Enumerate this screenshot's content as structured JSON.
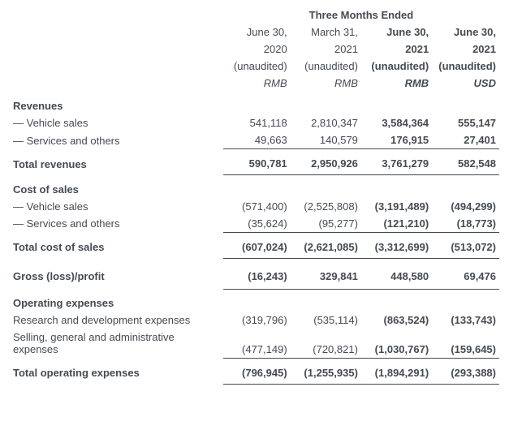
{
  "period_header": "Three Months Ended",
  "columns": [
    {
      "line1": "June 30,",
      "line2": "2020",
      "audit": "(unaudited)",
      "ccy": "RMB",
      "bold": false
    },
    {
      "line1": "March 31,",
      "line2": "2021",
      "audit": "(unaudited)",
      "ccy": "RMB",
      "bold": false
    },
    {
      "line1": "June 30,",
      "line2": "2021",
      "audit": "(unaudited)",
      "ccy": "RMB",
      "bold": true
    },
    {
      "line1": "June 30,",
      "line2": "2021",
      "audit": "(unaudited)",
      "ccy": "USD",
      "bold": true
    }
  ],
  "sections": [
    {
      "title": "Revenues",
      "rows": [
        {
          "label": "— Vehicle sales",
          "vals": [
            "541,118",
            "2,810,347",
            "3,584,364",
            "555,147"
          ],
          "underline": false
        },
        {
          "label": "— Services and others",
          "vals": [
            "49,663",
            "140,579",
            "176,915",
            "27,401"
          ],
          "underline": true
        }
      ],
      "total": {
        "label": "Total revenues",
        "vals": [
          "590,781",
          "2,950,926",
          "3,761,279",
          "582,548"
        ]
      }
    },
    {
      "title": "Cost of sales",
      "rows": [
        {
          "label": "— Vehicle sales",
          "vals": [
            "(571,400)",
            "(2,525,808)",
            "(3,191,489)",
            "(494,299)"
          ],
          "underline": false
        },
        {
          "label": "— Services and others",
          "vals": [
            "(35,624)",
            "(95,277)",
            "(121,210)",
            "(18,773)"
          ],
          "underline": true
        }
      ],
      "total": {
        "label": "Total cost of sales",
        "vals": [
          "(607,024)",
          "(2,621,085)",
          "(3,312,699)",
          "(513,072)"
        ]
      }
    }
  ],
  "gross": {
    "label": "Gross (loss)/profit",
    "vals": [
      "(16,243)",
      "329,841",
      "448,580",
      "69,476"
    ]
  },
  "opex": {
    "title": "Operating expenses",
    "rows": [
      {
        "label": "Research and development expenses",
        "vals": [
          "(319,796)",
          "(535,114)",
          "(863,524)",
          "(133,743)"
        ],
        "underline": false
      },
      {
        "label": "Selling, general and administrative expenses",
        "vals": [
          "(477,149)",
          "(720,821)",
          "(1,030,767)",
          "(159,645)"
        ],
        "underline": true
      }
    ],
    "total": {
      "label": "Total operating expenses",
      "vals": [
        "(796,945)",
        "(1,255,935)",
        "(1,894,291)",
        "(293,388)"
      ]
    }
  }
}
